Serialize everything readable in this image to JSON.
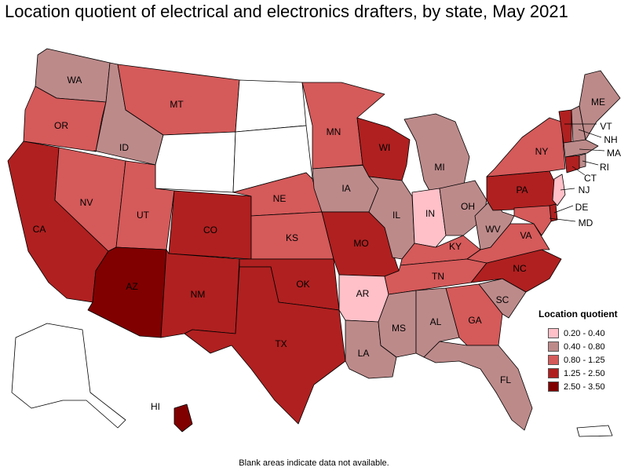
{
  "title": "Location quotient of electrical and electronics drafters, by state, May 2021",
  "footnote": "Blank areas indicate data not available.",
  "legend": {
    "title": "Location quotient",
    "items": [
      {
        "label": "0.20 - 0.40",
        "color": "#ffc0c8"
      },
      {
        "label": "0.40 - 0.80",
        "color": "#bd8a8a"
      },
      {
        "label": "0.80 - 1.25",
        "color": "#d55a5a"
      },
      {
        "label": "1.25 - 2.50",
        "color": "#b02020"
      },
      {
        "label": "2.50 - 3.50",
        "color": "#800000"
      }
    ]
  },
  "chart_data": {
    "type": "choropleth",
    "states": {
      "WA": "0.40 - 0.80",
      "OR": "0.80 - 1.25",
      "CA": "1.25 - 2.50",
      "NV": "0.80 - 1.25",
      "ID": "0.40 - 0.80",
      "MT": "0.80 - 1.25",
      "WY": null,
      "UT": "0.80 - 1.25",
      "AZ": "2.50 - 3.50",
      "CO": "1.25 - 2.50",
      "NM": "1.25 - 2.50",
      "ND": null,
      "SD": null,
      "NE": "0.80 - 1.25",
      "KS": "0.80 - 1.25",
      "OK": "1.25 - 2.50",
      "TX": "1.25 - 2.50",
      "MN": "0.80 - 1.25",
      "IA": "0.40 - 0.80",
      "MO": "1.25 - 2.50",
      "AR": "0.20 - 0.40",
      "LA": "0.40 - 0.80",
      "WI": "1.25 - 2.50",
      "IL": "0.40 - 0.80",
      "MI": "0.40 - 0.80",
      "IN": "0.20 - 0.40",
      "OH": "0.40 - 0.80",
      "KY": "0.80 - 1.25",
      "TN": "0.80 - 1.25",
      "MS": "0.40 - 0.80",
      "AL": "0.40 - 0.80",
      "GA": "0.80 - 1.25",
      "FL": "0.40 - 0.80",
      "SC": "0.40 - 0.80",
      "NC": "1.25 - 2.50",
      "VA": "0.80 - 1.25",
      "WV": "0.40 - 0.80",
      "PA": "1.25 - 2.50",
      "NY": "0.80 - 1.25",
      "VT": "1.25 - 2.50",
      "NH": "0.40 - 0.80",
      "ME": "0.40 - 0.80",
      "MA": "0.40 - 0.80",
      "RI": "0.40 - 0.80",
      "CT": "1.25 - 2.50",
      "NJ": "0.20 - 0.40",
      "DE": "1.25 - 2.50",
      "MD": "0.80 - 1.25",
      "AK": null,
      "HI": "2.50 - 3.50",
      "PR": null
    }
  }
}
